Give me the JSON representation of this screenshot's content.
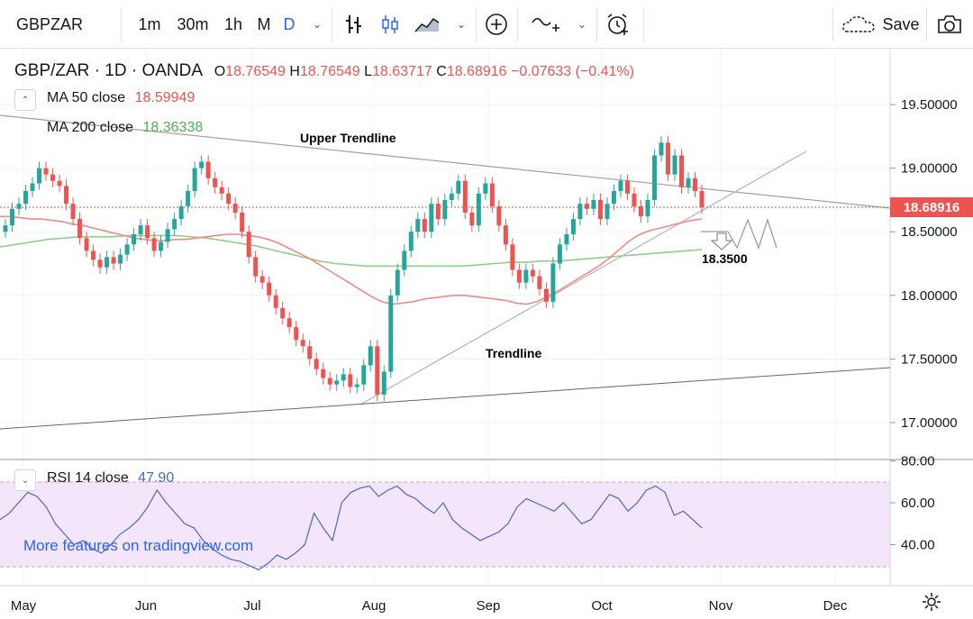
{
  "toolbar": {
    "symbol": "GBPZAR",
    "intervals": [
      "1m",
      "30m",
      "1h",
      "M",
      "D"
    ],
    "active_interval": "D",
    "save_label": "Save",
    "icons": [
      "bars-style-icon",
      "candles-style-icon",
      "area-style-icon",
      "add-compare-icon",
      "indicators-icon",
      "alert-icon",
      "cloud-icon",
      "camera-icon"
    ]
  },
  "legend": {
    "title": "GBP/ZAR · 1D · OANDA",
    "open_label": "O",
    "open": "18.76549",
    "high_label": "H",
    "high": "18.76549",
    "low_label": "L",
    "low": "18.63717",
    "close_label": "C",
    "close": "18.68916",
    "change": "−0.07633 (−0.41%)",
    "ma50_label": "MA 50 close",
    "ma50_value": "18.59949",
    "ma200_label": "MA 200 close",
    "ma200_value": "18.36338"
  },
  "rsi": {
    "label": "RSI 14 close",
    "value": "47.90"
  },
  "annotations": {
    "upper_trendline": "Upper Trendline",
    "trendline": "Trendline",
    "target": "18.3500"
  },
  "watermark": "More features on tradingview.com",
  "colors": {
    "up": "#26a69a",
    "down": "#ef5350",
    "ma50": "#f08b84",
    "ma200": "#8fcf8a",
    "rsi": "#4a69bd",
    "rsi_band": "#f3e6fa",
    "accent": "#2962ff"
  },
  "chart_data": {
    "type": "candlestick",
    "symbol": "GBP/ZAR",
    "y_ticks": [
      "19.50000",
      "19.00000",
      "18.50000",
      "18.00000",
      "17.50000",
      "17.00000"
    ],
    "x_ticks": [
      "May",
      "Jun",
      "Jul",
      "Aug",
      "Sep",
      "Oct",
      "Nov",
      "Dec"
    ],
    "last_price": "18.68916",
    "ylim": [
      16.7,
      19.95
    ],
    "rsi_ticks": [
      "80.00",
      "60.00",
      "40.00"
    ],
    "rsi_range": [
      30,
      70
    ],
    "closes": [
      18.55,
      18.68,
      18.72,
      18.82,
      18.88,
      19.0,
      18.95,
      18.9,
      18.86,
      18.72,
      18.6,
      18.45,
      18.35,
      18.28,
      18.22,
      18.3,
      18.25,
      18.32,
      18.4,
      18.48,
      18.55,
      18.45,
      18.35,
      18.42,
      18.52,
      18.6,
      18.7,
      18.82,
      19.0,
      19.05,
      18.92,
      18.85,
      18.8,
      18.72,
      18.65,
      18.5,
      18.3,
      18.15,
      18.1,
      18.0,
      17.9,
      17.82,
      17.75,
      17.65,
      17.6,
      17.5,
      17.42,
      17.35,
      17.3,
      17.33,
      17.38,
      17.28,
      17.3,
      17.45,
      17.6,
      17.22,
      17.4,
      18.0,
      18.2,
      18.35,
      18.5,
      18.6,
      18.5,
      18.72,
      18.6,
      18.75,
      18.8,
      18.9,
      18.65,
      18.55,
      18.8,
      18.88,
      18.7,
      18.55,
      18.4,
      18.2,
      18.1,
      18.2,
      18.15,
      18.05,
      17.95,
      18.25,
      18.4,
      18.48,
      18.6,
      18.72,
      18.68,
      18.75,
      18.6,
      18.72,
      18.82,
      18.9,
      18.8,
      18.7,
      18.62,
      18.75,
      19.1,
      19.2,
      18.95,
      19.1,
      18.85,
      18.92,
      18.82,
      18.69
    ],
    "ma50": [
      18.62,
      18.62,
      18.61,
      18.6,
      18.6,
      18.59,
      18.58,
      18.56,
      18.55,
      18.53,
      18.51,
      18.49,
      18.47,
      18.45,
      18.44,
      18.43,
      18.43,
      18.44,
      18.44,
      18.45,
      18.46,
      18.47,
      18.48,
      18.48,
      18.47,
      18.46,
      18.44,
      18.41,
      18.37,
      18.33,
      18.29,
      18.24,
      18.19,
      18.14,
      18.09,
      18.04,
      17.99,
      17.95,
      17.93,
      17.94,
      17.95,
      17.97,
      17.98,
      17.99,
      18.0,
      18.0,
      17.99,
      17.98,
      17.97,
      17.96,
      17.94,
      17.93,
      17.95,
      17.99,
      18.03,
      18.08,
      18.13,
      18.18,
      18.23,
      18.29,
      18.36,
      18.43,
      18.48,
      18.51,
      18.53,
      18.55,
      18.57,
      18.59,
      18.6
    ],
    "ma200": [
      18.38,
      18.4,
      18.42,
      18.44,
      18.45,
      18.46,
      18.46,
      18.46,
      18.47,
      18.47,
      18.47,
      18.47,
      18.46,
      18.45,
      18.43,
      18.41,
      18.39,
      18.36,
      18.33,
      18.3,
      18.27,
      18.25,
      18.24,
      18.23,
      18.23,
      18.23,
      18.23,
      18.23,
      18.23,
      18.23,
      18.24,
      18.25,
      18.26,
      18.26,
      18.27,
      18.27,
      18.28,
      18.29,
      18.3,
      18.31,
      18.32,
      18.33,
      18.34,
      18.35,
      18.36
    ],
    "rsi_values": [
      52,
      55,
      60,
      65,
      63,
      58,
      50,
      45,
      40,
      42,
      38,
      36,
      40,
      45,
      48,
      52,
      58,
      66,
      60,
      55,
      50,
      48,
      42,
      38,
      35,
      33,
      32,
      30,
      28,
      31,
      35,
      33,
      36,
      40,
      55,
      48,
      42,
      60,
      65,
      67,
      68,
      63,
      66,
      68,
      64,
      62,
      58,
      55,
      60,
      52,
      48,
      45,
      42,
      44,
      46,
      50,
      58,
      62,
      60,
      58,
      56,
      60,
      55,
      50,
      52,
      58,
      64,
      62,
      56,
      60,
      66,
      68,
      65,
      54,
      56,
      52,
      48
    ]
  }
}
